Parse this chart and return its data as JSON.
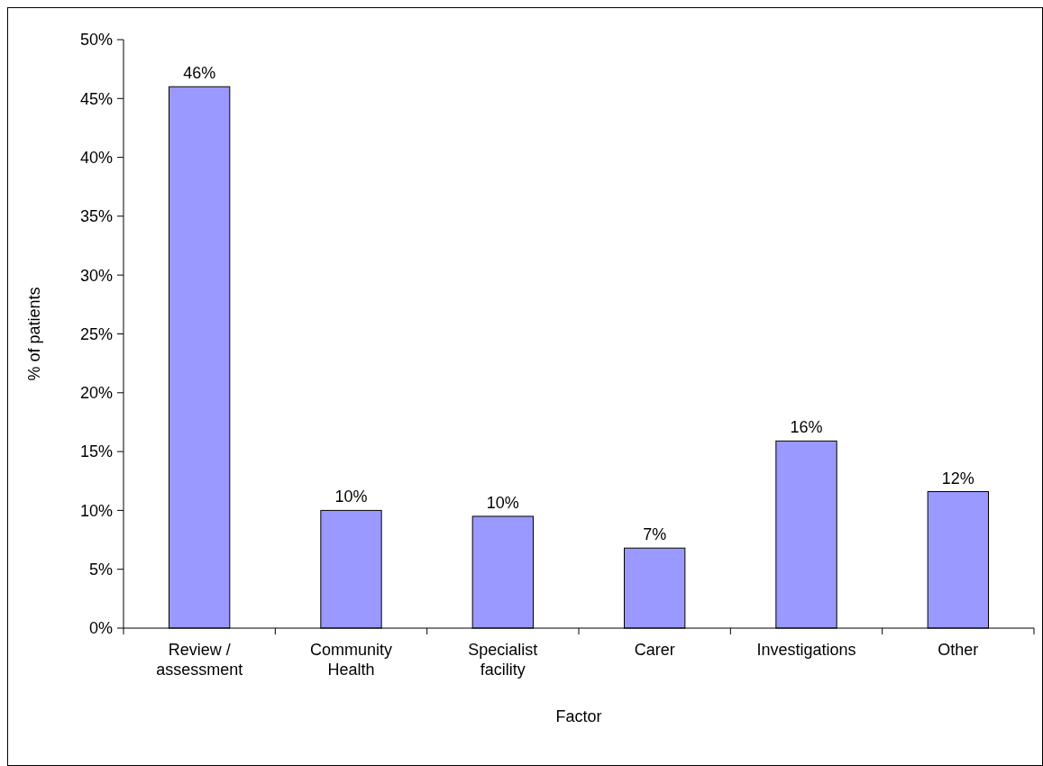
{
  "chart_data": {
    "type": "bar",
    "xlabel": "Factor",
    "ylabel": "% of patients",
    "categories": [
      "Review / assessment",
      "Community Health",
      "Specialist facility",
      "Carer",
      "Investigations",
      "Other"
    ],
    "values": [
      46,
      10,
      9.5,
      6.8,
      15.9,
      11.6
    ],
    "value_labels": [
      "46%",
      "10%",
      "10%",
      "7%",
      "16%",
      "12%"
    ],
    "color": "#9999ff",
    "ylim": [
      0,
      50
    ],
    "yticks": [
      {
        "value": 0,
        "label": "0%"
      },
      {
        "value": 5,
        "label": "5%"
      },
      {
        "value": 10,
        "label": "10%"
      },
      {
        "value": 15,
        "label": "15%"
      },
      {
        "value": 20,
        "label": "20%"
      },
      {
        "value": 25,
        "label": "25%"
      },
      {
        "value": 30,
        "label": "30%"
      },
      {
        "value": 35,
        "label": "35%"
      },
      {
        "value": 40,
        "label": "40%"
      },
      {
        "value": 45,
        "label": "45%"
      },
      {
        "value": 50,
        "label": "50%"
      }
    ]
  }
}
